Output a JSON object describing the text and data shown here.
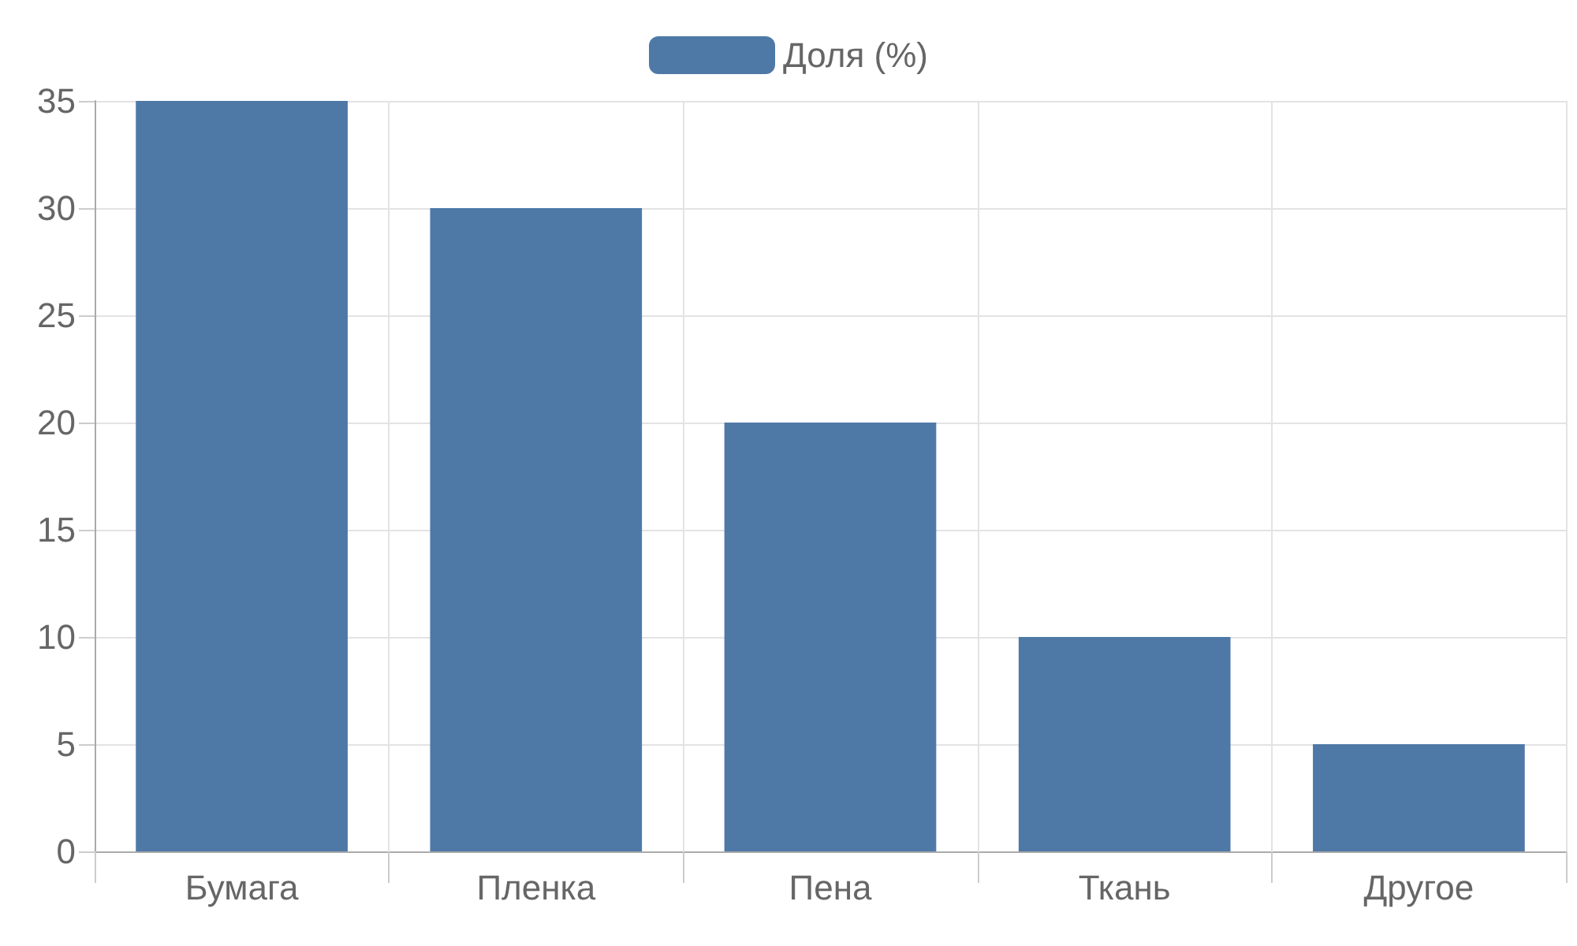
{
  "chart_data": {
    "type": "bar",
    "categories": [
      "Бумага",
      "Пленка",
      "Пена",
      "Ткань",
      "Другое"
    ],
    "series": [
      {
        "name": "Доля (%)",
        "color": "#4e79a7",
        "values": [
          35,
          30,
          20,
          10,
          5
        ]
      }
    ],
    "ylim": [
      0,
      35
    ],
    "yticks": [
      0,
      5,
      10,
      15,
      20,
      25,
      30,
      35
    ],
    "grid": true,
    "legend": "top"
  }
}
